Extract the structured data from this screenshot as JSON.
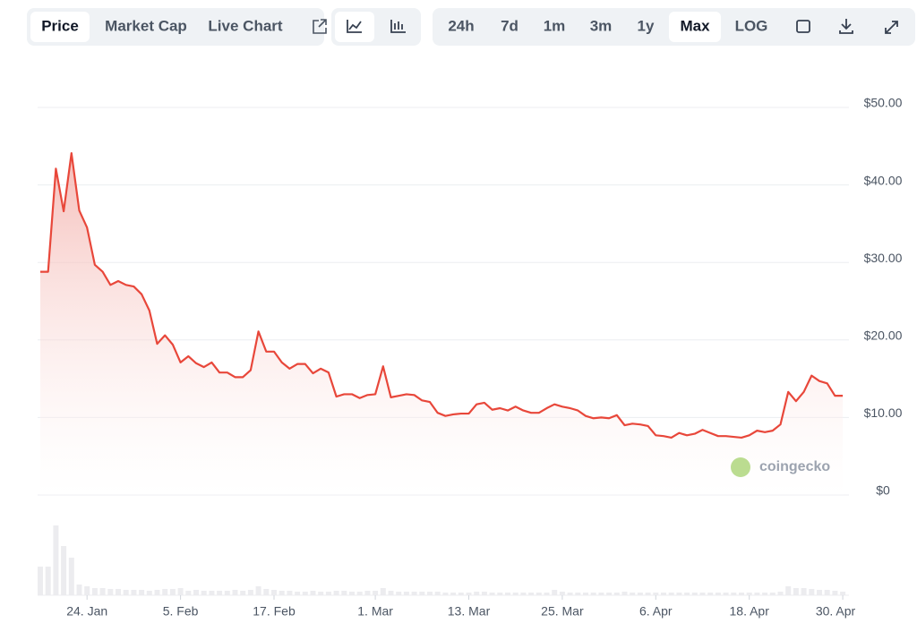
{
  "toolbar": {
    "tabs": [
      "Price",
      "Market Cap",
      "Live Chart"
    ],
    "ranges": [
      "24h",
      "7d",
      "1m",
      "3m",
      "1y",
      "Max",
      "LOG"
    ]
  },
  "chart_data": {
    "type": "line",
    "watermark": "coingecko",
    "x": [
      "18. Jan",
      "19. Jan",
      "20. Jan",
      "21. Jan",
      "22. Jan",
      "23. Jan",
      "24. Jan",
      "25. Jan",
      "26. Jan",
      "27. Jan",
      "28. Jan",
      "29. Jan",
      "30. Jan",
      "31. Jan",
      "1. Feb",
      "2. Feb",
      "3. Feb",
      "4. Feb",
      "5. Feb",
      "6. Feb",
      "7. Feb",
      "8. Feb",
      "9. Feb",
      "10. Feb",
      "11. Feb",
      "12. Feb",
      "13. Feb",
      "14. Feb",
      "15. Feb",
      "16. Feb",
      "17. Feb",
      "18. Feb",
      "19. Feb",
      "20. Feb",
      "21. Feb",
      "22. Feb",
      "23. Feb",
      "24. Feb",
      "25. Feb",
      "26. Feb",
      "27. Feb",
      "28. Feb",
      "29. Feb",
      "1. Mar",
      "2. Mar",
      "3. Mar",
      "4. Mar",
      "5. Mar",
      "6. Mar",
      "7. Mar",
      "8. Mar",
      "9. Mar",
      "10. Mar",
      "11. Mar",
      "12. Mar",
      "13. Mar",
      "14. Mar",
      "15. Mar",
      "16. Mar",
      "17. Mar",
      "18. Mar",
      "19. Mar",
      "20. Mar",
      "21. Mar",
      "22. Mar",
      "23. Mar",
      "24. Mar",
      "25. Mar",
      "26. Mar",
      "27. Mar",
      "28. Mar",
      "29. Mar",
      "30. Mar",
      "31. Mar",
      "1. Apr",
      "2. Apr",
      "3. Apr",
      "4. Apr",
      "5. Apr",
      "6. Apr",
      "7. Apr",
      "8. Apr",
      "9. Apr",
      "10. Apr",
      "11. Apr",
      "12. Apr",
      "13. Apr",
      "14. Apr",
      "15. Apr",
      "16. Apr",
      "17. Apr",
      "18. Apr",
      "19. Apr",
      "20. Apr",
      "21. Apr",
      "22. Apr",
      "23. Apr",
      "24. Apr",
      "25. Apr",
      "26. Apr",
      "27. Apr",
      "28. Apr",
      "29. Apr",
      "30. Apr"
    ],
    "series": [
      {
        "name": "Price",
        "color": "#e8473a",
        "values": [
          28.8,
          28.8,
          42.1,
          36.6,
          44.1,
          36.7,
          34.5,
          29.7,
          28.8,
          27.1,
          27.6,
          27.1,
          26.9,
          25.9,
          23.8,
          19.5,
          20.6,
          19.4,
          17.1,
          17.9,
          17.0,
          16.5,
          17.1,
          15.8,
          15.8,
          15.2,
          15.2,
          16.1,
          21.1,
          18.5,
          18.5,
          17.1,
          16.3,
          16.9,
          16.9,
          15.7,
          16.3,
          15.8,
          12.7,
          13.0,
          13.0,
          12.5,
          12.9,
          13.0,
          16.6,
          12.6,
          12.8,
          13.0,
          12.9,
          12.2,
          12.0,
          10.6,
          10.2,
          10.4,
          10.5,
          10.5,
          11.7,
          11.9,
          11.0,
          11.2,
          10.9,
          11.4,
          10.9,
          10.6,
          10.6,
          11.2,
          11.7,
          11.4,
          11.2,
          10.9,
          10.2,
          9.9,
          10.0,
          9.9,
          10.3,
          9.0,
          9.2,
          9.1,
          8.9,
          7.7,
          7.6,
          7.4,
          8.0,
          7.7,
          7.9,
          8.4,
          8.0,
          7.6,
          7.6,
          7.5,
          7.4,
          7.7,
          8.3,
          8.1,
          8.3,
          9.1,
          13.3,
          12.1,
          13.3,
          15.4,
          14.7,
          14.4,
          12.8,
          12.8
        ]
      },
      {
        "name": "Volume",
        "color": "#ececef",
        "values": [
          32,
          32,
          78,
          55,
          42,
          12,
          10,
          8,
          8,
          7,
          7,
          6,
          6,
          6,
          5,
          6,
          7,
          7,
          8,
          5,
          6,
          5,
          5,
          5,
          5,
          6,
          5,
          6,
          10,
          7,
          6,
          5,
          5,
          4,
          4,
          5,
          4,
          4,
          5,
          5,
          4,
          4,
          5,
          5,
          8,
          5,
          4,
          4,
          4,
          4,
          4,
          4,
          3,
          3,
          3,
          3,
          4,
          4,
          3,
          3,
          3,
          3,
          3,
          3,
          3,
          3,
          6,
          4,
          3,
          3,
          3,
          3,
          3,
          3,
          3,
          4,
          3,
          3,
          3,
          3,
          3,
          3,
          3,
          3,
          3,
          3,
          3,
          3,
          3,
          3,
          3,
          3,
          3,
          3,
          3,
          4,
          10,
          8,
          8,
          7,
          6,
          6,
          5,
          4
        ]
      }
    ],
    "ylim": [
      0,
      50
    ],
    "yticks": [
      {
        "value": 0,
        "label": "$0"
      },
      {
        "value": 10,
        "label": "$10.00"
      },
      {
        "value": 20,
        "label": "$20.00"
      },
      {
        "value": 30,
        "label": "$30.00"
      },
      {
        "value": 40,
        "label": "$40.00"
      },
      {
        "value": 50,
        "label": "$50.00"
      }
    ],
    "xticks": [
      "24. Jan",
      "5. Feb",
      "17. Feb",
      "1. Mar",
      "13. Mar",
      "25. Mar",
      "6. Apr",
      "18. Apr",
      "30. Apr"
    ],
    "grid": true
  }
}
